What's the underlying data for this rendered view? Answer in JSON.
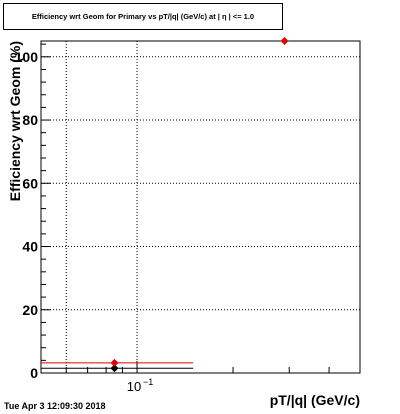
{
  "chart_data": {
    "type": "scatter",
    "title": "Efficiency wrt Geom for Primary vs pT/|q| (GeV/c) at | η | <= 1.0",
    "xlabel": "pT/|q| (GeV/c)",
    "ylabel": "Efficiency wrt Geom (%)",
    "x_scale": "log",
    "xlim": [
      0.05,
      0.5
    ],
    "ylim": [
      0,
      105
    ],
    "grid": true,
    "x_ticks": [
      {
        "value": 0.1,
        "label": "10",
        "exp": "−1"
      }
    ],
    "y_ticks": [
      0,
      20,
      40,
      60,
      80,
      100
    ],
    "series": [
      {
        "color": "#000000",
        "marker": "diamond",
        "points": [
          {
            "x": 0.085,
            "y": 1.5
          }
        ],
        "segments": [
          {
            "x0": 0.05,
            "x1": 0.15,
            "y": 1.5
          }
        ]
      },
      {
        "color": "#dd0000",
        "marker": "diamond",
        "points": [
          {
            "x": 0.085,
            "y": 3.2
          },
          {
            "x": 0.29,
            "y": 105
          }
        ],
        "segments": [
          {
            "x0": 0.05,
            "x1": 0.15,
            "y": 3.2
          }
        ]
      }
    ]
  },
  "timestamp": "Tue Apr  3 12:09:30 2018"
}
